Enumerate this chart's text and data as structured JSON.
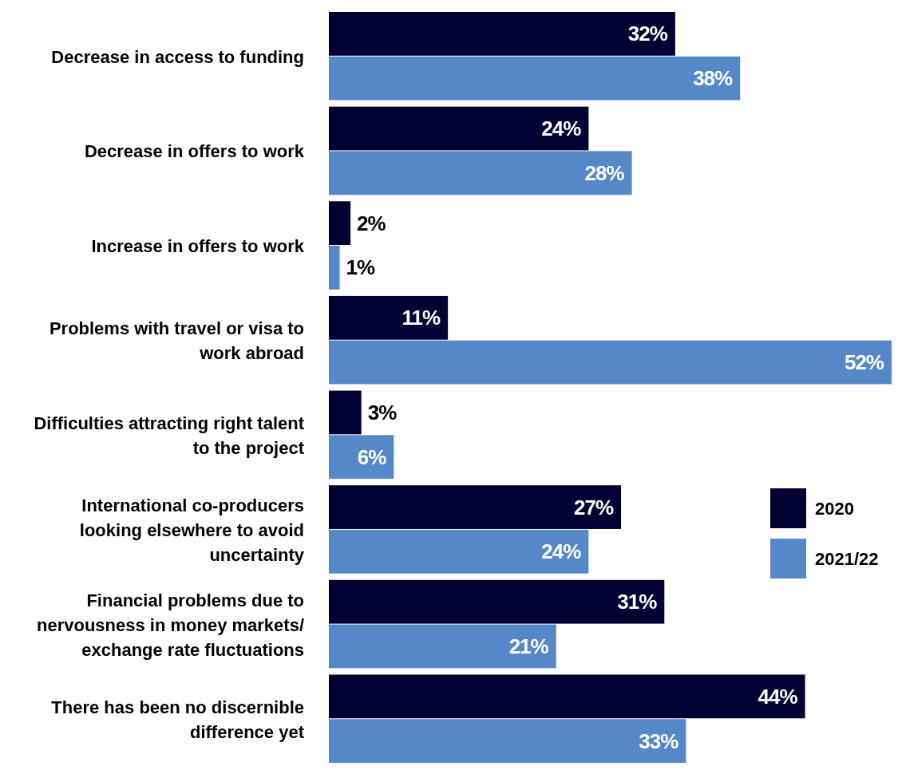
{
  "chart_data": {
    "type": "bar",
    "orientation": "horizontal",
    "categories": [
      "Decrease in access to funding",
      "Decrease in offers to work",
      "Increase in offers to work",
      "Problems with travel or visa to work abroad",
      "Difficulties attracting right talent to the project",
      "International co-producers looking elsewhere to avoid uncertainty",
      "Financial problems due to nervousness in money markets/exchange rate fluctuations",
      "There has been no discernible difference yet"
    ],
    "series": [
      {
        "name": "2020",
        "color": "#000033",
        "values": [
          32,
          24,
          2,
          11,
          3,
          27,
          31,
          44
        ],
        "value_labels": [
          "32%",
          "24%",
          "2%",
          "11%",
          "3%",
          "27%",
          "31%",
          "44%"
        ]
      },
      {
        "name": "2021/22",
        "color": "#5588c8",
        "values": [
          38,
          28,
          1,
          52,
          6,
          24,
          21,
          33
        ],
        "value_labels": [
          "38%",
          "28%",
          "1%",
          "52%",
          "6%",
          "24%",
          "21%",
          "33%"
        ]
      }
    ],
    "legend": "right"
  }
}
